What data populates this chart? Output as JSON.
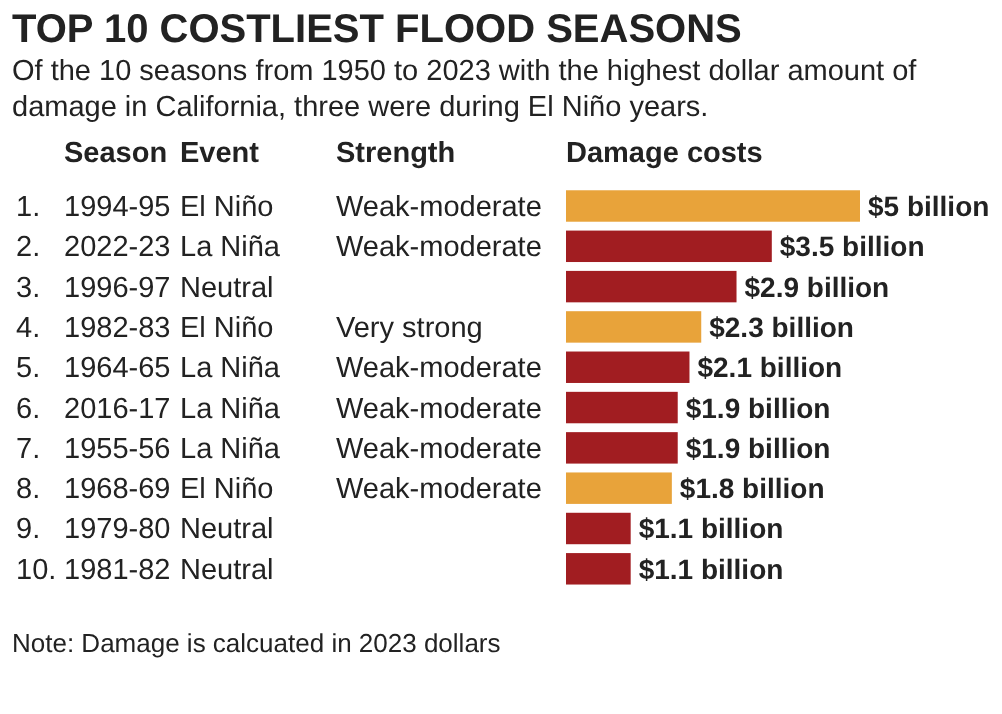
{
  "chart_data": {
    "type": "bar",
    "orientation": "horizontal",
    "title": "TOP 10 COSTLIEST FLOOD SEASONS",
    "subtitle": "Of the 10 seasons from 1950 to 2023 with the highest dollar amount of damage in California, three were during El Niño years.",
    "categories": [
      "1.\t1994-95\tEl Niño\tWeak-moderate",
      "2.\t2022-23\tLa Niña\tWeak-moderate",
      "3.\t1996-97\tNeutral",
      "4.\t1982-83\tEl Niño\tVery strong",
      "5.\t1964-65\tLa Niña\tWeak-moderate",
      "6.\t2016-17\tLa Niña\tWeak-moderate",
      "7.\t1955-56\tLa Niña\tWeak-moderate",
      "8.\t1968-69\tEl Niño\tWeak-moderate",
      "9.\t1979-80\tNeutral",
      "10.\t1981-82\tNeutral"
    ],
    "values": [
      5,
      3.5,
      2.9,
      2.3,
      2.1,
      1.9,
      1.9,
      1.8,
      1.1,
      1.1
    ],
    "colors": [
      "#e8a33a",
      "#a11d21",
      "#a11d21",
      "#e8a33a",
      "#a11d21",
      "#a11d21",
      "#a11d21",
      "#e8a33a",
      "#a11d21",
      "#a11d21"
    ],
    "value_labels": [
      "$5 billion",
      "$3.5 billion",
      "$2.9 billion",
      "$2.3 billion",
      "$2.1 billion",
      "$1.9 billion",
      "$1.9 billion",
      "$1.8 billion",
      "$1.1 billion",
      "$1.1 billion"
    ],
    "annotations": [
      "Season",
      "Event",
      "Strength",
      "Damage costs",
      "Note: Damage is calcuated in 2023 dollars"
    ]
  }
}
